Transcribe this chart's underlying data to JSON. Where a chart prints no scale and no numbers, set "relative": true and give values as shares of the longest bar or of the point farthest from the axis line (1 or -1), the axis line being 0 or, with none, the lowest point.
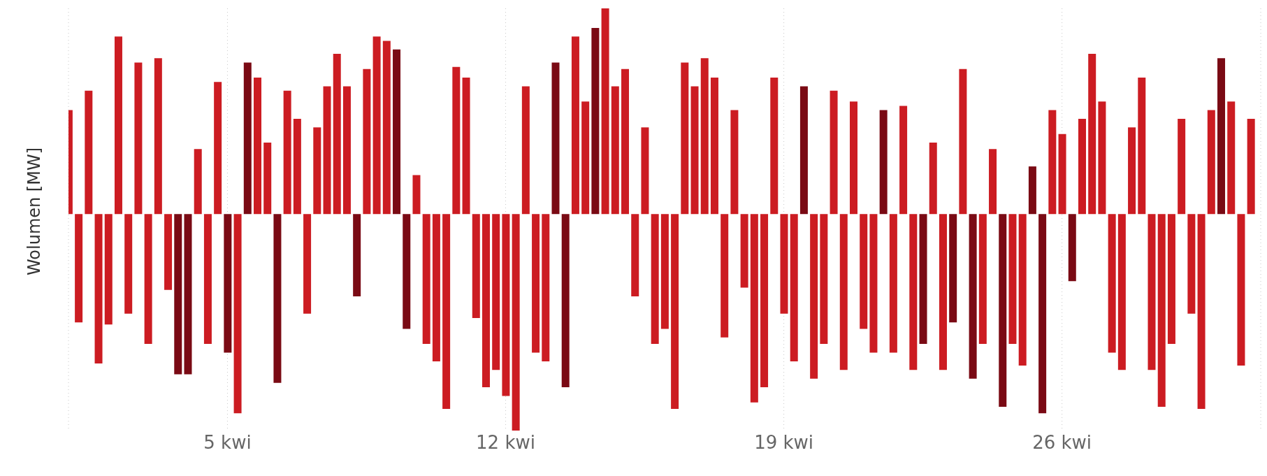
{
  "chart_data": {
    "type": "bar",
    "ylabel": "Wolumen [MW]",
    "relative": true,
    "grid": "x",
    "legend": false,
    "xlim": [
      "--04-01T00:00",
      "--05-01T00:00"
    ],
    "xticks": [
      {
        "value": "--04-05T00:00",
        "label": "5 kwi"
      },
      {
        "value": "--04-12T00:00",
        "label": "12 kwi"
      },
      {
        "value": "--04-19T00:00",
        "label": "19 kwi"
      },
      {
        "value": "--04-26T00:00",
        "label": "26 kwi"
      }
    ],
    "x": [
      "--04-01T00:00",
      "--04-01T06:00",
      "--04-01T12:00",
      "--04-01T18:00",
      "--04-02T00:00",
      "--04-02T06:00",
      "--04-02T12:00",
      "--04-02T18:00",
      "--04-03T00:00",
      "--04-03T06:00",
      "--04-03T12:00",
      "--04-03T18:00",
      "--04-04T00:00",
      "--04-04T06:00",
      "--04-04T12:00",
      "--04-04T18:00",
      "--04-05T00:00",
      "--04-05T06:00",
      "--04-05T12:00",
      "--04-05T18:00",
      "--04-06T00:00",
      "--04-06T06:00",
      "--04-06T12:00",
      "--04-06T18:00",
      "--04-07T00:00",
      "--04-07T06:00",
      "--04-07T12:00",
      "--04-07T18:00",
      "--04-08T00:00",
      "--04-08T06:00",
      "--04-08T12:00",
      "--04-08T18:00",
      "--04-09T00:00",
      "--04-09T06:00",
      "--04-09T12:00",
      "--04-09T18:00",
      "--04-10T00:00",
      "--04-10T06:00",
      "--04-10T12:00",
      "--04-10T18:00",
      "--04-11T00:00",
      "--04-11T06:00",
      "--04-11T12:00",
      "--04-11T18:00",
      "--04-12T00:00",
      "--04-12T06:00",
      "--04-12T12:00",
      "--04-12T18:00",
      "--04-13T00:00",
      "--04-13T06:00",
      "--04-13T12:00",
      "--04-13T18:00",
      "--04-14T00:00",
      "--04-14T06:00",
      "--04-14T12:00",
      "--04-14T18:00",
      "--04-15T00:00",
      "--04-15T06:00",
      "--04-15T12:00",
      "--04-15T18:00",
      "--04-16T00:00",
      "--04-16T06:00",
      "--04-16T12:00",
      "--04-16T18:00",
      "--04-17T00:00",
      "--04-17T06:00",
      "--04-17T12:00",
      "--04-17T18:00",
      "--04-18T00:00",
      "--04-18T06:00",
      "--04-18T12:00",
      "--04-18T18:00",
      "--04-19T00:00",
      "--04-19T06:00",
      "--04-19T12:00",
      "--04-19T18:00",
      "--04-20T00:00",
      "--04-20T06:00",
      "--04-20T12:00",
      "--04-20T18:00",
      "--04-21T00:00",
      "--04-21T06:00",
      "--04-21T12:00",
      "--04-21T18:00",
      "--04-22T00:00",
      "--04-22T06:00",
      "--04-22T12:00",
      "--04-22T18:00",
      "--04-23T00:00",
      "--04-23T06:00",
      "--04-23T12:00",
      "--04-23T18:00",
      "--04-24T00:00",
      "--04-24T06:00",
      "--04-24T12:00",
      "--04-24T18:00",
      "--04-25T00:00",
      "--04-25T06:00",
      "--04-25T12:00",
      "--04-25T18:00",
      "--04-26T00:00",
      "--04-26T06:00",
      "--04-26T12:00",
      "--04-26T18:00",
      "--04-27T00:00",
      "--04-27T06:00",
      "--04-27T12:00",
      "--04-27T18:00",
      "--04-28T00:00",
      "--04-28T06:00",
      "--04-28T12:00",
      "--04-28T18:00",
      "--04-29T00:00",
      "--04-29T06:00",
      "--04-29T12:00",
      "--04-29T18:00",
      "--04-30T00:00",
      "--04-30T06:00",
      "--04-30T12:00",
      "--04-30T18:00"
    ],
    "values": [
      0.48,
      -0.5,
      0.57,
      -0.69,
      -0.51,
      0.82,
      -0.46,
      0.7,
      -0.6,
      0.72,
      -0.35,
      -0.74,
      -0.74,
      0.3,
      -0.6,
      0.61,
      -0.64,
      -0.92,
      0.7,
      0.63,
      0.33,
      -0.78,
      0.57,
      0.44,
      -0.46,
      0.4,
      0.59,
      0.74,
      0.59,
      -0.38,
      0.67,
      0.82,
      0.8,
      0.76,
      -0.53,
      0.18,
      -0.6,
      -0.68,
      -0.9,
      0.68,
      0.63,
      -0.48,
      -0.8,
      -0.72,
      -0.84,
      -1,
      0.59,
      -0.64,
      -0.68,
      0.7,
      -0.8,
      0.82,
      0.52,
      0.86,
      0.95,
      0.59,
      0.67,
      -0.38,
      0.4,
      -0.6,
      -0.53,
      -0.9,
      0.7,
      0.59,
      0.72,
      0.63,
      -0.57,
      0.48,
      -0.34,
      -0.87,
      -0.8,
      0.63,
      -0.46,
      -0.68,
      0.59,
      -0.76,
      -0.6,
      0.57,
      -0.72,
      0.52,
      -0.53,
      -0.64,
      0.48,
      -0.64,
      0.5,
      -0.72,
      -0.6,
      0.33,
      -0.72,
      -0.5,
      0.67,
      -0.76,
      -0.6,
      0.3,
      -0.89,
      -0.6,
      -0.7,
      0.22,
      -0.92,
      0.48,
      0.37,
      -0.31,
      0.44,
      0.74,
      0.52,
      -0.64,
      -0.72,
      0.4,
      0.63,
      -0.72,
      -0.89,
      -0.6,
      0.44,
      -0.46,
      -0.9,
      0.48,
      0.72,
      0.52,
      -0.7,
      0.44
    ],
    "colors": [
      "#cc1c22",
      "#cc1c22",
      "#cc1c22",
      "#cc1c22",
      "#cc1c22",
      "#cc1c22",
      "#cc1c22",
      "#cc1c22",
      "#cc1c22",
      "#cc1c22",
      "#cc1c22",
      "#7a0a14",
      "#7a0a14",
      "#cc1c22",
      "#cc1c22",
      "#cc1c22",
      "#7a0a14",
      "#cc1c22",
      "#7a0a14",
      "#cc1c22",
      "#cc1c22",
      "#7a0a14",
      "#cc1c22",
      "#cc1c22",
      "#cc1c22",
      "#cc1c22",
      "#cc1c22",
      "#cc1c22",
      "#cc1c22",
      "#7a0a14",
      "#cc1c22",
      "#cc1c22",
      "#cc1c22",
      "#7a0a14",
      "#7a0a14",
      "#cc1c22",
      "#cc1c22",
      "#cc1c22",
      "#cc1c22",
      "#cc1c22",
      "#cc1c22",
      "#cc1c22",
      "#cc1c22",
      "#cc1c22",
      "#cc1c22",
      "#cc1c22",
      "#cc1c22",
      "#cc1c22",
      "#cc1c22",
      "#7a0a14",
      "#7a0a14",
      "#cc1c22",
      "#cc1c22",
      "#7a0a14",
      "#cc1c22",
      "#cc1c22",
      "#cc1c22",
      "#cc1c22",
      "#cc1c22",
      "#cc1c22",
      "#cc1c22",
      "#cc1c22",
      "#cc1c22",
      "#cc1c22",
      "#cc1c22",
      "#cc1c22",
      "#cc1c22",
      "#cc1c22",
      "#cc1c22",
      "#cc1c22",
      "#cc1c22",
      "#cc1c22",
      "#cc1c22",
      "#cc1c22",
      "#7a0a14",
      "#cc1c22",
      "#cc1c22",
      "#cc1c22",
      "#cc1c22",
      "#cc1c22",
      "#cc1c22",
      "#cc1c22",
      "#7a0a14",
      "#cc1c22",
      "#cc1c22",
      "#cc1c22",
      "#7a0a14",
      "#cc1c22",
      "#cc1c22",
      "#7a0a14",
      "#cc1c22",
      "#7a0a14",
      "#cc1c22",
      "#cc1c22",
      "#7a0a14",
      "#cc1c22",
      "#cc1c22",
      "#7a0a14",
      "#7a0a14",
      "#cc1c22",
      "#cc1c22",
      "#7a0a14",
      "#cc1c22",
      "#cc1c22",
      "#cc1c22",
      "#cc1c22",
      "#cc1c22",
      "#cc1c22",
      "#cc1c22",
      "#cc1c22",
      "#cc1c22",
      "#cc1c22",
      "#cc1c22",
      "#cc1c22",
      "#cc1c22",
      "#cc1c22",
      "#7a0a14",
      "#cc1c22",
      "#cc1c22",
      "#cc1c22"
    ]
  }
}
